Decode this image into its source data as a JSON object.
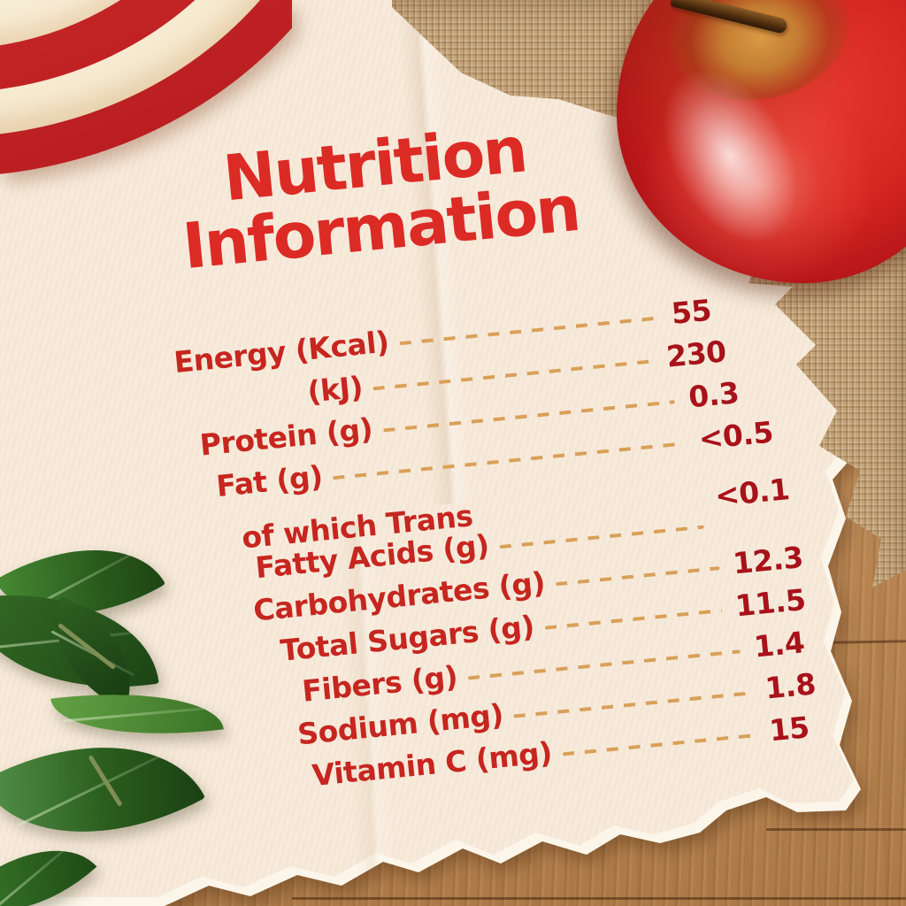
{
  "title": {
    "line1": "Nutrition",
    "line2": "Information"
  },
  "nutrition": {
    "rows": [
      {
        "label": "Energy (Kcal)",
        "value": "55"
      },
      {
        "label": "(kJ)",
        "value": "230"
      },
      {
        "label": "Protein (g)",
        "value": "0.3"
      },
      {
        "label": "Fat (g)",
        "value": "<0.5"
      },
      {
        "label": "of which Trans",
        "label2": "Fatty Acids (g)",
        "value": "<0.1"
      },
      {
        "label": "Carbohydrates (g)",
        "value": "12.3"
      },
      {
        "label": "Total Sugars (g)",
        "value": "11.5"
      },
      {
        "label": "Fibers (g)",
        "value": "1.4"
      },
      {
        "label": "Sodium (mg)",
        "value": "1.8"
      },
      {
        "label": "Vitamin C (mg)",
        "value": "15"
      }
    ]
  },
  "colors": {
    "title_red": "#dc2a25",
    "label_red": "#c6261f",
    "value_red": "#a8121a",
    "leader_gold": "#d9a058",
    "paper_cream": "#f7eada",
    "paper_edge_white": "#fcf6ea",
    "wood_brown": "#bd8a57",
    "burlap_tan": "#c2a279",
    "apple_red": "#d4251f",
    "apple_slice_flesh": "#f6ead0",
    "leaf_green": "#2a5c1d"
  }
}
